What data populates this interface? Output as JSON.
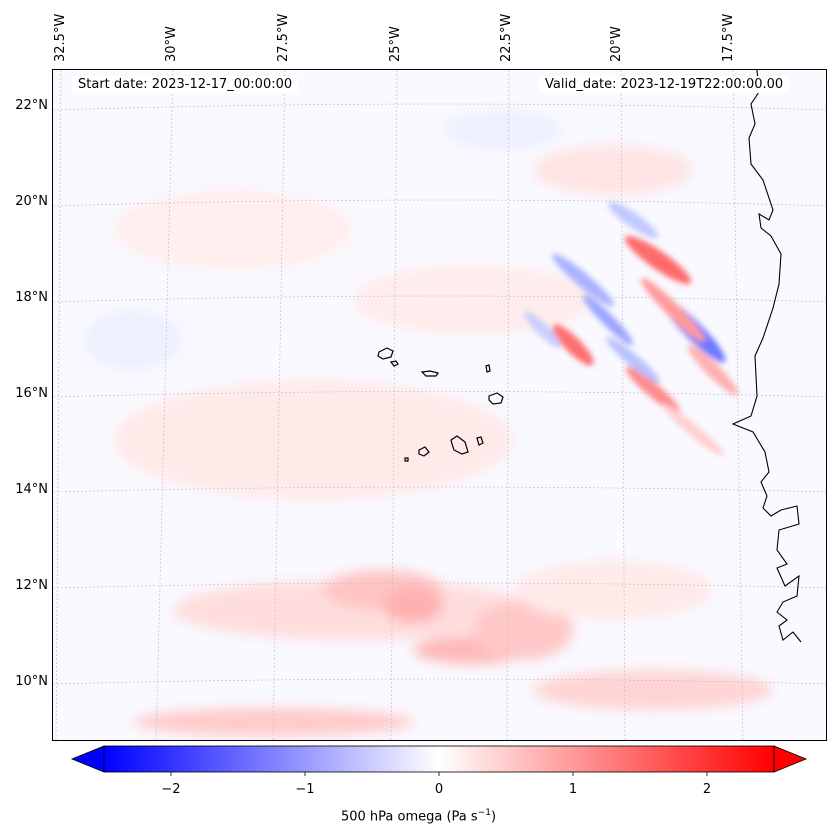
{
  "map": {
    "start_date_label": "Start date: 2023-12-17_00:00:00",
    "valid_date_label": "Valid_date: 2023-12-19T22:00:00.00",
    "lon_ticks": [
      "32.5°W",
      "30°W",
      "27.5°W",
      "25°W",
      "22.5°W",
      "20°W",
      "17.5°W"
    ],
    "lat_ticks": [
      "22°N",
      "20°N",
      "18°N",
      "16°N",
      "14°N",
      "12°N",
      "10°N"
    ],
    "extent": {
      "lon_min": -32.6,
      "lon_max": -15.2,
      "lat_min": 8.9,
      "lat_max": 22.8
    },
    "field": "500 hPa omega",
    "features": [
      "Cape Verde islands",
      "West African coastline"
    ]
  },
  "colorbar": {
    "label": "500 hPa omega (Pa s⁻¹)",
    "label_base": "500 hPa omega (Pa s",
    "label_sup": "−1",
    "label_end": ")",
    "ticks": [
      "−2",
      "−1",
      "0",
      "1",
      "2"
    ],
    "range": [
      -2.7,
      2.7
    ],
    "colormap": "bwr",
    "extend": "both",
    "low_color": "#0000ff",
    "mid_color": "#ffffff",
    "high_color": "#ff0000"
  }
}
